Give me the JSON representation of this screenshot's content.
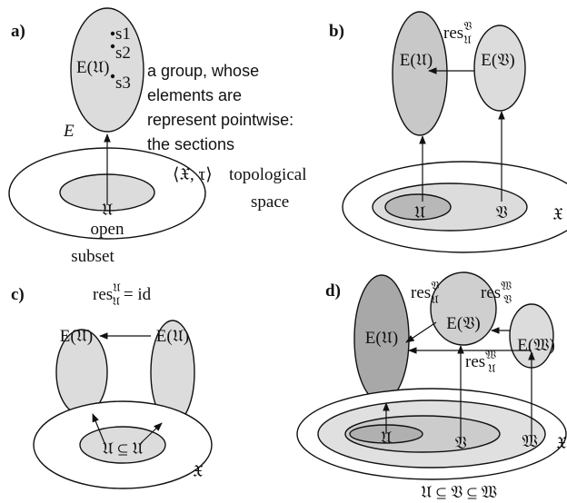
{
  "panel_a": {
    "label": "a)",
    "fiber": "E(𝔘)",
    "sections": [
      "s1",
      "s2",
      "s3"
    ],
    "description": [
      "a group, whose",
      "elements are",
      "represent pointwise:",
      "the sections"
    ],
    "map": "E",
    "space_symbol": "⟨𝔛, τ⟩",
    "space_text": [
      "topological",
      "space"
    ],
    "subset_symbol": "𝔘",
    "subset_text": [
      "open",
      "subset"
    ]
  },
  "panel_b": {
    "label": "b)",
    "restriction": {
      "base": "res",
      "sup": "𝔙",
      "sub": "𝔘"
    },
    "fibers": [
      "E(𝔘)",
      "E(𝔙)"
    ],
    "sets": [
      "𝔘",
      "𝔙",
      "𝔛"
    ]
  },
  "panel_c": {
    "label": "c)",
    "restriction": {
      "base": "res",
      "sup": "𝔘",
      "sub": "𝔘",
      "rest": "= id"
    },
    "fibers": [
      "E(𝔘)",
      "E(𝔘)"
    ],
    "inclusion": "𝔘 ⊆ 𝔘",
    "space": "𝔛"
  },
  "panel_d": {
    "label": "d)",
    "restrictions": [
      {
        "base": "res",
        "sup": "𝔙",
        "sub": "𝔘"
      },
      {
        "base": "res",
        "sup": "𝔚",
        "sub": "𝔙"
      },
      {
        "base": "res",
        "sup": "𝔚",
        "sub": "𝔘"
      }
    ],
    "fibers": [
      "E(𝔘)",
      "E(𝔙)",
      "E(𝔚)"
    ],
    "sets": [
      "𝔘",
      "𝔙",
      "𝔚",
      "𝔛"
    ],
    "inclusion": "𝔘 ⊆ 𝔙 ⊆ 𝔚"
  }
}
